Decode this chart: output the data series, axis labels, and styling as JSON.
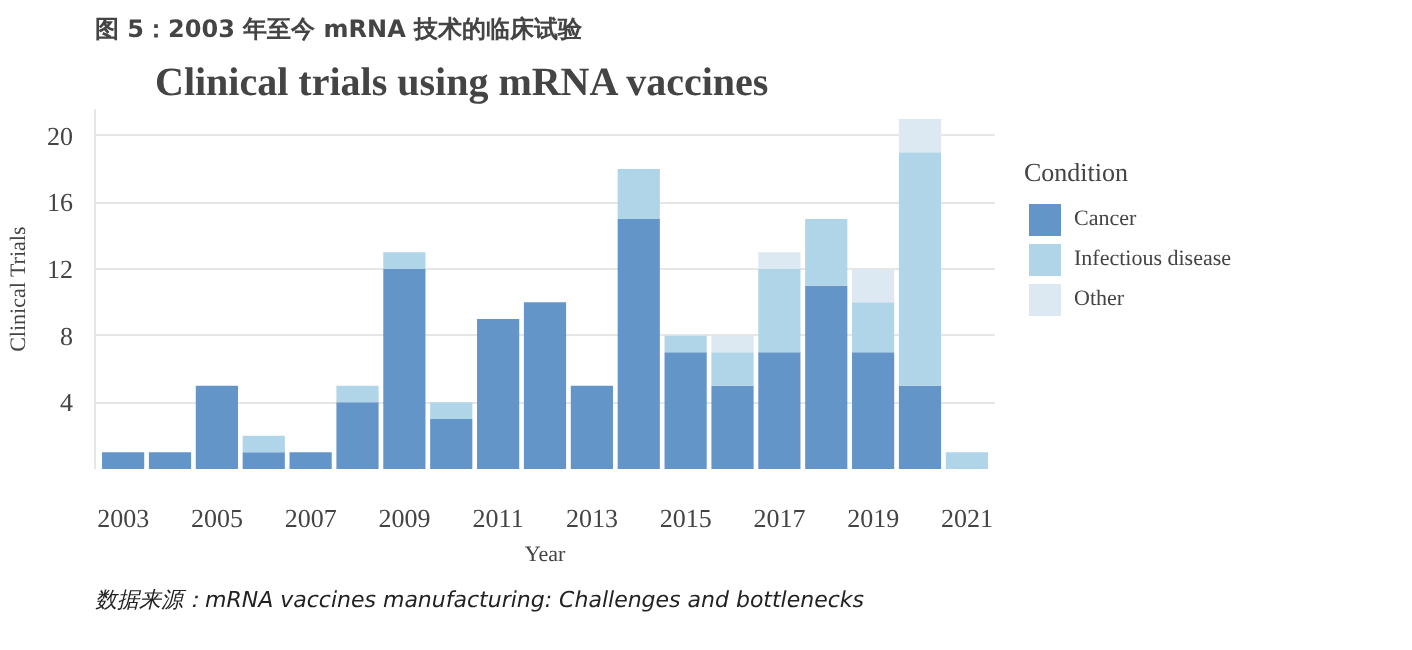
{
  "chart_data": {
    "type": "bar",
    "stacked": true,
    "title": "Clinical trials using mRNA vaccines",
    "xlabel": "Year",
    "ylabel": "Clinical Trials",
    "legend_title": "Condition",
    "x": [
      2003,
      2004,
      2005,
      2006,
      2007,
      2008,
      2009,
      2010,
      2011,
      2012,
      2013,
      2014,
      2015,
      2016,
      2017,
      2018,
      2019,
      2020,
      2021
    ],
    "series": [
      {
        "name": "Cancer",
        "color": "#6495c8",
        "values": [
          1,
          1,
          5,
          1,
          1,
          4,
          12,
          3,
          9,
          10,
          5,
          15,
          7,
          5,
          7,
          11,
          7,
          5,
          0
        ]
      },
      {
        "name": "Infectious disease",
        "color": "#b0d4e8",
        "values": [
          0,
          0,
          0,
          1,
          0,
          1,
          1,
          1,
          0,
          0,
          0,
          3,
          1,
          2,
          5,
          4,
          3,
          14,
          1
        ]
      },
      {
        "name": "Other",
        "color": "#dde9f2",
        "values": [
          0,
          0,
          0,
          0,
          0,
          0,
          0,
          0,
          0,
          0,
          0,
          0,
          0,
          1,
          1,
          0,
          2,
          2,
          0
        ]
      }
    ],
    "xlim": [
      2002.4,
      2021.6
    ],
    "ylim": [
      0,
      21.6
    ],
    "xticks": [
      2003,
      2005,
      2007,
      2009,
      2011,
      2013,
      2015,
      2017,
      2019,
      2021
    ],
    "yticks": [
      4,
      8,
      12,
      16,
      20
    ],
    "grid": "y",
    "legend": "right",
    "annotations": [
      "图 5：2003 年至今 mRNA 技术的临床试验",
      "数据来源：mRNA vaccines manufacturing: Challenges and bottlenecks"
    ]
  }
}
